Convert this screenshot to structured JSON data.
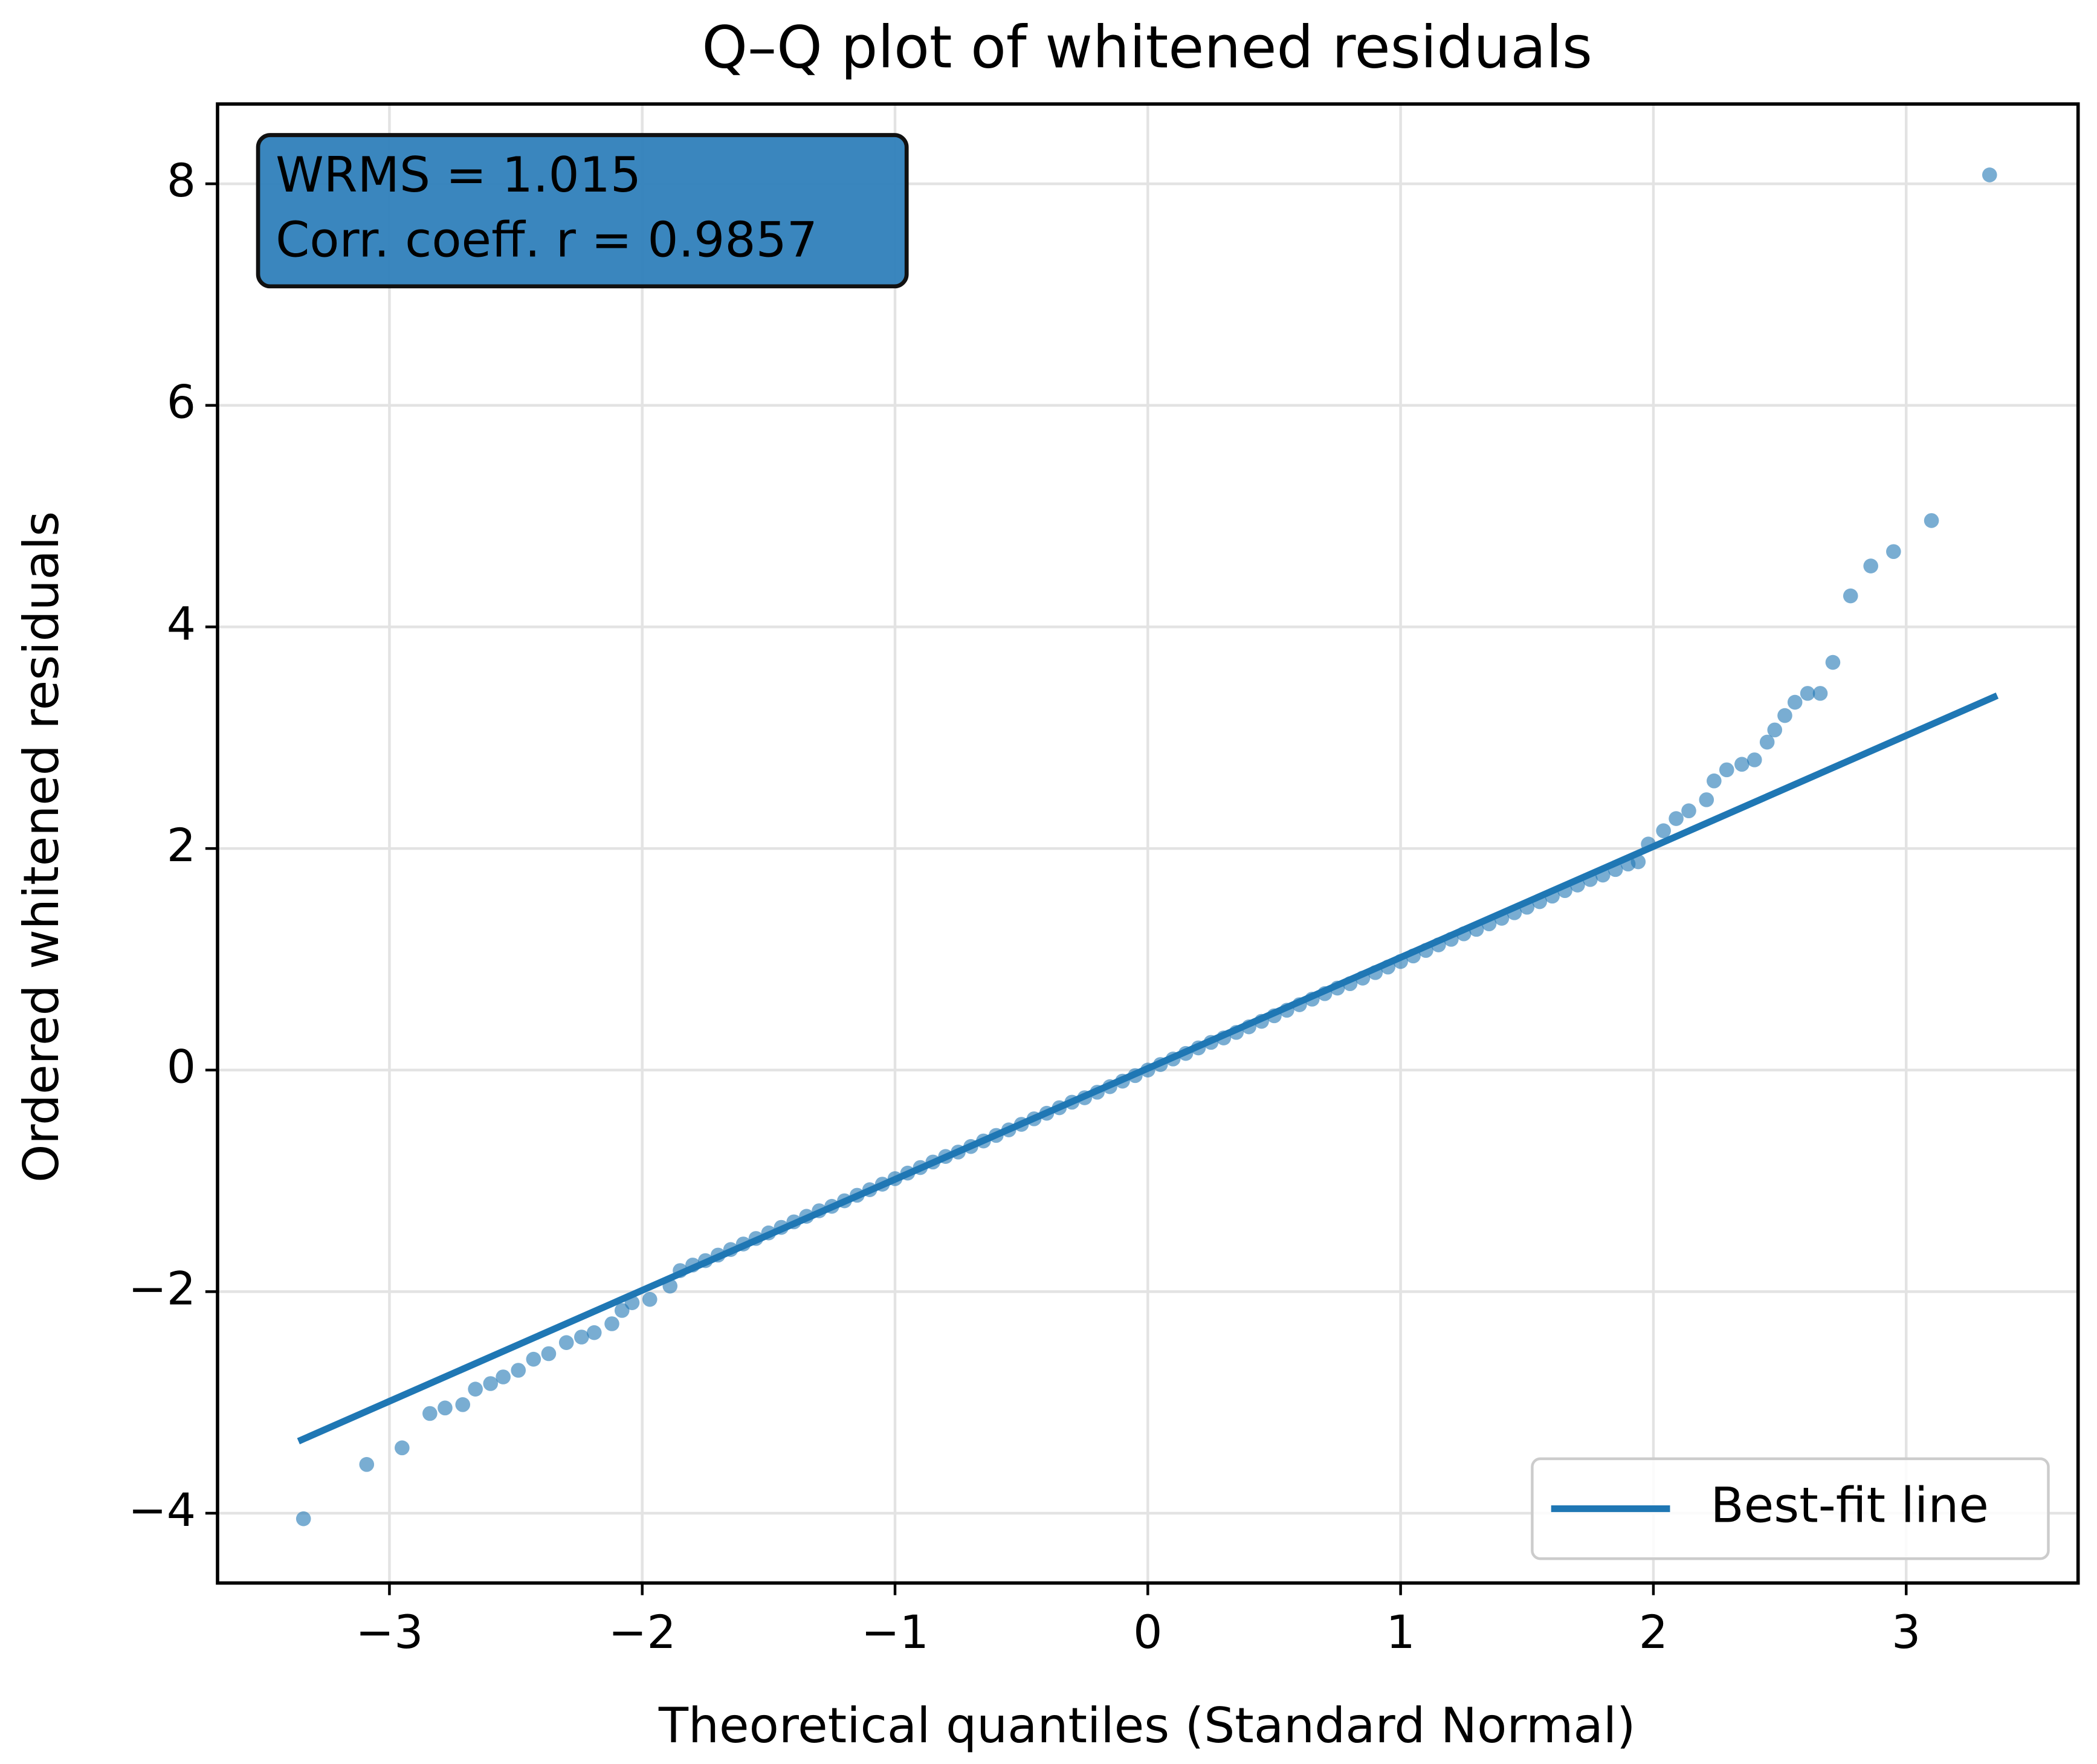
{
  "chart_data": {
    "type": "scatter",
    "title": "Q–Q plot of whitened residuals",
    "x_label": "Theoretical quantiles (Standard Normal)",
    "y_label": "Ordered whitened residuals",
    "annotations": [
      "WRMS = 1.015",
      "Corr. coeff. r = 0.9857"
    ],
    "annotation_color": "#2f80bb",
    "legend": "lower right",
    "grid": true,
    "xlim": [
      -3.68,
      3.68
    ],
    "ylim": [
      -4.63,
      8.72
    ],
    "xticks": [
      {
        "value": -3,
        "label": "−3"
      },
      {
        "value": -2,
        "label": "−2"
      },
      {
        "value": -1,
        "label": "−1"
      },
      0,
      1,
      2,
      3
    ],
    "yticks": [
      {
        "value": -4,
        "label": "−4"
      },
      {
        "value": -2,
        "label": "−2"
      },
      0,
      2,
      4,
      6,
      8
    ],
    "series": [
      {
        "type": "scatter",
        "color": "#1f77b4",
        "x": [
          -3.34,
          -3.09,
          -2.95,
          -2.84,
          -2.78,
          -2.71,
          -2.66,
          -2.6,
          -2.55,
          -2.49,
          -2.43,
          -2.37,
          -2.3,
          -2.24,
          -2.19,
          -2.12,
          -2.08,
          -2.04,
          -1.97,
          -1.89,
          -1.85,
          -1.8,
          -1.75,
          -1.7,
          -1.65,
          -1.6,
          -1.55,
          -1.5,
          -1.45,
          -1.4,
          -1.35,
          -1.3,
          -1.25,
          -1.2,
          -1.15,
          -1.1,
          -1.05,
          -1.0,
          -0.95,
          -0.9,
          -0.85,
          -0.8,
          -0.75,
          -0.7,
          -0.65,
          -0.6,
          -0.55,
          -0.5,
          -0.45,
          -0.4,
          -0.35,
          -0.3,
          -0.25,
          -0.2,
          -0.15,
          -0.1,
          -0.05,
          0,
          0.05,
          0.1,
          0.15,
          0.2,
          0.25,
          0.3,
          0.35,
          0.4,
          0.45,
          0.5,
          0.55,
          0.6,
          0.65,
          0.7,
          0.75,
          0.8,
          0.85,
          0.9,
          0.95,
          1.0,
          1.05,
          1.1,
          1.15,
          1.2,
          1.25,
          1.3,
          1.35,
          1.4,
          1.45,
          1.5,
          1.55,
          1.6,
          1.65,
          1.7,
          1.75,
          1.8,
          1.85,
          1.9,
          1.94,
          1.98,
          2.04,
          2.09,
          2.14,
          2.21,
          2.24,
          2.29,
          2.35,
          2.4,
          2.45,
          2.48,
          2.52,
          2.56,
          2.61,
          2.66,
          2.71,
          2.78,
          2.86,
          2.95,
          3.1,
          3.33
        ],
        "values": [
          -4.05,
          -3.56,
          -3.41,
          -3.1,
          -3.05,
          -3.02,
          -2.88,
          -2.83,
          -2.77,
          -2.71,
          -2.61,
          -2.56,
          -2.46,
          -2.41,
          -2.37,
          -2.29,
          -2.17,
          -2.1,
          -2.07,
          -1.95,
          -1.81,
          -1.76,
          -1.72,
          -1.67,
          -1.62,
          -1.57,
          -1.52,
          -1.47,
          -1.42,
          -1.37,
          -1.32,
          -1.27,
          -1.23,
          -1.18,
          -1.13,
          -1.08,
          -1.03,
          -0.98,
          -0.93,
          -0.88,
          -0.83,
          -0.78,
          -0.74,
          -0.69,
          -0.64,
          -0.59,
          -0.54,
          -0.49,
          -0.44,
          -0.39,
          -0.34,
          -0.29,
          -0.25,
          -0.2,
          -0.15,
          -0.1,
          -0.05,
          0,
          0.05,
          0.1,
          0.15,
          0.2,
          0.25,
          0.29,
          0.34,
          0.39,
          0.44,
          0.49,
          0.54,
          0.59,
          0.64,
          0.69,
          0.74,
          0.78,
          0.83,
          0.88,
          0.93,
          0.98,
          1.03,
          1.08,
          1.13,
          1.18,
          1.23,
          1.27,
          1.32,
          1.37,
          1.42,
          1.47,
          1.52,
          1.57,
          1.62,
          1.67,
          1.72,
          1.76,
          1.81,
          1.86,
          1.88,
          2.04,
          2.16,
          2.27,
          2.34,
          2.44,
          2.61,
          2.71,
          2.76,
          2.8,
          2.96,
          3.07,
          3.2,
          3.32,
          3.4,
          3.4,
          3.68,
          4.28,
          4.55,
          4.68,
          4.96,
          8.08
        ]
      },
      {
        "type": "line",
        "name": "Best-fit line",
        "color": "#1f77b4",
        "x": [
          -3.36,
          3.36
        ],
        "values": [
          -3.35,
          3.38
        ]
      }
    ]
  }
}
